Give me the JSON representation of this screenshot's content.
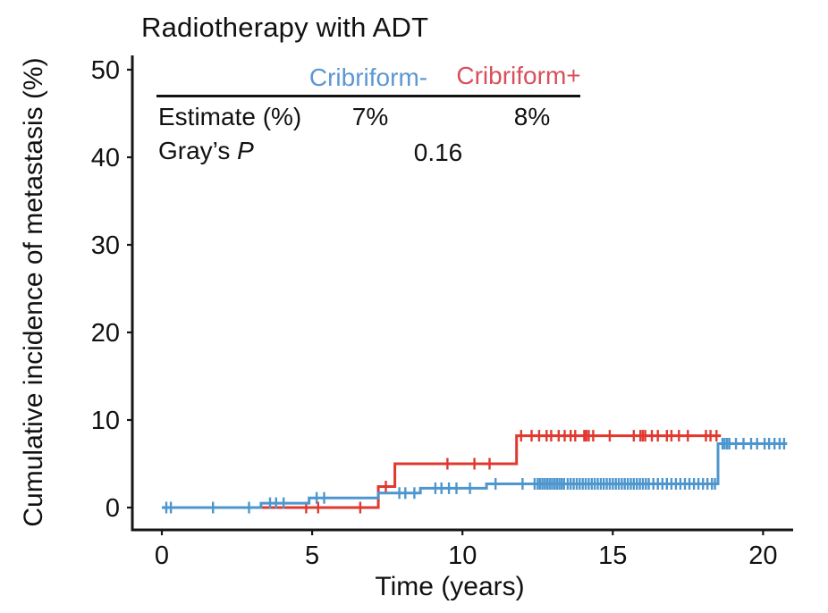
{
  "figure": {
    "title": "Radiotherapy with ADT",
    "x_axis_label": "Time (years)",
    "y_axis_label": "Cumulative incidence of metastasis (%)"
  },
  "stats_table": {
    "columns": [
      {
        "label": "Cribriform-",
        "color": "#5C97D2"
      },
      {
        "label": "Cribriform+",
        "color": "#D84F5B"
      }
    ],
    "estimate_row": {
      "label": "Estimate (%)",
      "values": [
        "7%",
        "8%"
      ]
    },
    "p_row": {
      "label_prefix": "Gray’s ",
      "label_italic": "P",
      "value": "0.16"
    }
  },
  "chart_data": {
    "type": "line",
    "variant": "cumulative-incidence-step",
    "title": "Radiotherapy with ADT",
    "xlabel": "Time (years)",
    "ylabel": "Cumulative incidence of metastasis (%)",
    "xlim": [
      0,
      21
    ],
    "ylim": [
      0,
      52
    ],
    "xticks": [
      0,
      5,
      10,
      15,
      20
    ],
    "yticks": [
      0,
      10,
      20,
      30,
      40,
      50
    ],
    "grid": false,
    "grays_p": 0.16,
    "series": [
      {
        "name": "Cribriform-",
        "slug": "cribriform-negative",
        "color": "#4D96CE",
        "final_estimate_pct": 7,
        "steps": [
          [
            0,
            0
          ],
          [
            3.3,
            0.5
          ],
          [
            4.9,
            1.1
          ],
          [
            7.2,
            1.65
          ],
          [
            8.6,
            2.2
          ],
          [
            10.8,
            2.7
          ],
          [
            18.5,
            7.3
          ]
        ],
        "end_time": 20.8,
        "censor_marks": [
          [
            0.15,
            0
          ],
          [
            0.3,
            0
          ],
          [
            1.7,
            0
          ],
          [
            2.9,
            0
          ],
          [
            3.6,
            0.5
          ],
          [
            3.8,
            0.5
          ],
          [
            4.05,
            0.5
          ],
          [
            5.15,
            1.1
          ],
          [
            5.4,
            1.1
          ],
          [
            7.9,
            1.65
          ],
          [
            8.1,
            1.65
          ],
          [
            8.4,
            1.65
          ],
          [
            9.1,
            2.2
          ],
          [
            9.3,
            2.2
          ],
          [
            9.55,
            2.2
          ],
          [
            9.8,
            2.2
          ],
          [
            10.25,
            2.2
          ],
          [
            11.1,
            2.7
          ],
          [
            12.0,
            2.7
          ],
          [
            12.4,
            2.7
          ],
          [
            12.5,
            2.7
          ],
          [
            12.58,
            2.7
          ],
          [
            12.66,
            2.7
          ],
          [
            12.74,
            2.7
          ],
          [
            12.82,
            2.7
          ],
          [
            12.9,
            2.7
          ],
          [
            12.98,
            2.7
          ],
          [
            13.06,
            2.7
          ],
          [
            13.14,
            2.7
          ],
          [
            13.22,
            2.7
          ],
          [
            13.3,
            2.7
          ],
          [
            13.38,
            2.7
          ],
          [
            13.5,
            2.7
          ],
          [
            13.6,
            2.7
          ],
          [
            13.7,
            2.7
          ],
          [
            13.8,
            2.7
          ],
          [
            13.9,
            2.7
          ],
          [
            14.0,
            2.7
          ],
          [
            14.1,
            2.7
          ],
          [
            14.2,
            2.7
          ],
          [
            14.3,
            2.7
          ],
          [
            14.4,
            2.7
          ],
          [
            14.5,
            2.7
          ],
          [
            14.6,
            2.7
          ],
          [
            14.7,
            2.7
          ],
          [
            14.8,
            2.7
          ],
          [
            14.9,
            2.7
          ],
          [
            15.0,
            2.7
          ],
          [
            15.1,
            2.7
          ],
          [
            15.2,
            2.7
          ],
          [
            15.3,
            2.7
          ],
          [
            15.4,
            2.7
          ],
          [
            15.5,
            2.7
          ],
          [
            15.6,
            2.7
          ],
          [
            15.7,
            2.7
          ],
          [
            15.8,
            2.7
          ],
          [
            15.9,
            2.7
          ],
          [
            16.0,
            2.7
          ],
          [
            16.1,
            2.7
          ],
          [
            16.2,
            2.7
          ],
          [
            16.35,
            2.7
          ],
          [
            16.5,
            2.7
          ],
          [
            16.65,
            2.7
          ],
          [
            16.8,
            2.7
          ],
          [
            16.95,
            2.7
          ],
          [
            17.1,
            2.7
          ],
          [
            17.25,
            2.7
          ],
          [
            17.4,
            2.7
          ],
          [
            17.55,
            2.7
          ],
          [
            17.7,
            2.7
          ],
          [
            17.85,
            2.7
          ],
          [
            18.0,
            2.7
          ],
          [
            18.15,
            2.7
          ],
          [
            18.3,
            2.7
          ],
          [
            18.4,
            2.7
          ],
          [
            18.65,
            7.3
          ],
          [
            18.72,
            7.3
          ],
          [
            18.8,
            7.3
          ],
          [
            18.88,
            7.3
          ],
          [
            19.1,
            7.3
          ],
          [
            19.35,
            7.3
          ],
          [
            19.6,
            7.3
          ],
          [
            19.8,
            7.3
          ],
          [
            20.05,
            7.3
          ],
          [
            20.2,
            7.3
          ],
          [
            20.38,
            7.3
          ],
          [
            20.55,
            7.3
          ],
          [
            20.7,
            7.3
          ]
        ]
      },
      {
        "name": "Cribriform+",
        "slug": "cribriform-positive",
        "color": "#E0392F",
        "final_estimate_pct": 8,
        "steps": [
          [
            0,
            0
          ],
          [
            7.2,
            2.4
          ],
          [
            7.75,
            5.0
          ],
          [
            11.8,
            8.2
          ]
        ],
        "end_time": 18.6,
        "censor_marks": [
          [
            4.8,
            0
          ],
          [
            5.2,
            0
          ],
          [
            6.6,
            0
          ],
          [
            7.45,
            2.4
          ],
          [
            9.5,
            5.0
          ],
          [
            10.4,
            5.0
          ],
          [
            10.9,
            5.0
          ],
          [
            11.95,
            8.2
          ],
          [
            12.3,
            8.2
          ],
          [
            12.55,
            8.2
          ],
          [
            12.8,
            8.2
          ],
          [
            12.95,
            8.2
          ],
          [
            13.2,
            8.2
          ],
          [
            13.4,
            8.2
          ],
          [
            13.6,
            8.2
          ],
          [
            13.75,
            8.2
          ],
          [
            14.05,
            8.2
          ],
          [
            14.12,
            8.2
          ],
          [
            14.2,
            8.2
          ],
          [
            14.35,
            8.2
          ],
          [
            14.9,
            8.2
          ],
          [
            15.7,
            8.2
          ],
          [
            15.92,
            8.2
          ],
          [
            16.0,
            8.2
          ],
          [
            16.08,
            8.2
          ],
          [
            16.3,
            8.2
          ],
          [
            16.5,
            8.2
          ],
          [
            16.8,
            8.2
          ],
          [
            16.95,
            8.2
          ],
          [
            17.2,
            8.2
          ],
          [
            17.5,
            8.2
          ],
          [
            18.1,
            8.2
          ],
          [
            18.25,
            8.2
          ],
          [
            18.45,
            8.2
          ]
        ]
      }
    ]
  }
}
